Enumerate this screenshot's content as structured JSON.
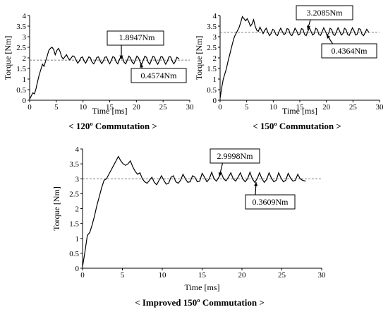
{
  "chart_data": [
    {
      "type": "line",
      "title": "< 120º Commutation >",
      "xlabel": "Time [ms]",
      "ylabel": "Torque  [Nm]",
      "xlim": [
        0,
        30
      ],
      "ylim": [
        0,
        4
      ],
      "xticks": [
        "0",
        "5",
        "10",
        "15",
        "20",
        "25",
        "30"
      ],
      "yticks": [
        "0",
        "0.5",
        "1",
        "1.5",
        "2",
        "2.5",
        "3",
        "3.5",
        "4"
      ],
      "grid": false,
      "series": [
        {
          "x": [
            0,
            0.3,
            0.6,
            0.9,
            1.2,
            1.5,
            1.8,
            2.1,
            2.4,
            2.7,
            3.0,
            3.3,
            3.6,
            3.9,
            4.2,
            4.5,
            4.8,
            5.1,
            5.4,
            5.7,
            6.0,
            6.3,
            6.6,
            6.9,
            7.2,
            7.5,
            7.8,
            8.1,
            8.4,
            8.7,
            9.0,
            9.3,
            9.6,
            9.9,
            10.2,
            10.5,
            10.8,
            11.1,
            11.4,
            11.7,
            12.0,
            12.3,
            12.6,
            12.9,
            13.2,
            13.5,
            13.8,
            14.1,
            14.4,
            14.7,
            15.0,
            15.3,
            15.6,
            15.9,
            16.2,
            16.5,
            16.8,
            17.1,
            17.4,
            17.7,
            18.0,
            18.3,
            18.6,
            18.9,
            19.2,
            19.5,
            19.8,
            20.1,
            20.4,
            20.7,
            21.0,
            21.3,
            21.6,
            21.9,
            22.2,
            22.5,
            22.8,
            23.1,
            23.4,
            23.7,
            24.0,
            24.3,
            24.6,
            24.9,
            25.2,
            25.5,
            25.8,
            26.1,
            26.4,
            26.7,
            27.0,
            27.3,
            27.6,
            28.0
          ],
          "y": [
            0.05,
            0.2,
            0.35,
            0.3,
            0.55,
            0.9,
            1.2,
            1.45,
            1.7,
            1.6,
            1.85,
            2.1,
            2.35,
            2.45,
            2.5,
            2.4,
            2.15,
            2.35,
            2.45,
            2.3,
            2.05,
            1.95,
            2.05,
            2.15,
            2.0,
            1.9,
            2.0,
            2.1,
            2.05,
            1.9,
            1.75,
            1.85,
            2.0,
            2.05,
            1.85,
            1.75,
            1.9,
            2.05,
            2.0,
            1.8,
            1.72,
            1.85,
            2.02,
            2.05,
            1.85,
            1.73,
            1.85,
            2.03,
            2.05,
            1.85,
            1.72,
            1.88,
            2.06,
            2.02,
            1.82,
            1.72,
            1.9,
            2.07,
            2.0,
            1.8,
            1.72,
            1.9,
            2.08,
            2.0,
            1.8,
            1.72,
            1.9,
            2.08,
            2.0,
            1.8,
            1.7,
            1.9,
            2.08,
            2.02,
            1.8,
            1.7,
            1.88,
            2.07,
            2.03,
            1.82,
            1.7,
            1.86,
            2.06,
            2.04,
            1.84,
            1.7,
            1.84,
            2.05,
            2.05,
            1.86,
            1.72,
            1.83,
            2.03,
            1.95
          ]
        }
      ],
      "mean_line": 1.8947,
      "annotations": [
        {
          "text": "1.8947Nm",
          "x": 20.5,
          "y": 1.92
        },
        {
          "text": "0.4574Nm",
          "x": 21.0,
          "y": 1.7
        }
      ]
    },
    {
      "type": "line",
      "title": "< 150º Commutation >",
      "xlabel": "Time [ms]",
      "ylabel": "Torque  [Nm]",
      "xlim": [
        0,
        30
      ],
      "ylim": [
        0,
        4
      ],
      "xticks": [
        "0",
        "5",
        "10",
        "15",
        "20",
        "25",
        "30"
      ],
      "yticks": [
        "0",
        "0.5",
        "1",
        "1.5",
        "2",
        "2.5",
        "3",
        "3.5",
        "4"
      ],
      "grid": false,
      "series": [
        {
          "x": [
            0,
            0.3,
            0.6,
            0.9,
            1.2,
            1.5,
            1.8,
            2.1,
            2.4,
            2.7,
            3.0,
            3.3,
            3.6,
            3.9,
            4.2,
            4.5,
            4.8,
            5.1,
            5.4,
            5.7,
            6.0,
            6.3,
            6.6,
            6.9,
            7.2,
            7.5,
            7.8,
            8.1,
            8.4,
            8.7,
            9.0,
            9.3,
            9.6,
            9.9,
            10.2,
            10.5,
            10.8,
            11.1,
            11.4,
            11.7,
            12.0,
            12.3,
            12.6,
            12.9,
            13.2,
            13.5,
            13.8,
            14.1,
            14.4,
            14.7,
            15.0,
            15.3,
            15.6,
            15.9,
            16.2,
            16.5,
            16.8,
            17.1,
            17.4,
            17.7,
            18.0,
            18.3,
            18.6,
            18.9,
            19.2,
            19.5,
            19.8,
            20.1,
            20.4,
            20.7,
            21.0,
            21.3,
            21.6,
            21.9,
            22.2,
            22.5,
            22.8,
            23.1,
            23.4,
            23.7,
            24.0,
            24.3,
            24.6,
            24.9,
            25.2,
            25.5,
            25.8,
            26.1,
            26.4,
            26.7,
            27.0,
            27.3,
            27.6,
            28.0
          ],
          "y": [
            0.1,
            0.6,
            1.0,
            1.25,
            1.5,
            1.85,
            2.15,
            2.45,
            2.75,
            3.0,
            3.15,
            3.3,
            3.45,
            3.7,
            3.95,
            3.85,
            3.75,
            3.85,
            3.7,
            3.5,
            3.6,
            3.8,
            3.5,
            3.3,
            3.25,
            3.45,
            3.3,
            3.15,
            3.3,
            3.4,
            3.2,
            3.05,
            3.15,
            3.35,
            3.3,
            3.1,
            3.05,
            3.25,
            3.4,
            3.25,
            3.1,
            3.15,
            3.38,
            3.35,
            3.12,
            3.05,
            3.2,
            3.4,
            3.28,
            3.08,
            3.12,
            3.38,
            3.35,
            3.1,
            3.05,
            3.25,
            3.42,
            3.26,
            3.08,
            3.14,
            3.4,
            3.34,
            3.1,
            3.06,
            3.24,
            3.42,
            3.26,
            3.08,
            3.14,
            3.4,
            3.34,
            3.1,
            3.06,
            3.24,
            3.42,
            3.26,
            3.08,
            3.14,
            3.4,
            3.34,
            3.1,
            3.06,
            3.24,
            3.42,
            3.28,
            3.08,
            3.12,
            3.38,
            3.35,
            3.12,
            3.05,
            3.2,
            3.35,
            3.2
          ]
        }
      ],
      "mean_line": 3.2085,
      "annotations": [
        {
          "text": "3.2085Nm",
          "x": 16.0,
          "y": 3.21
        },
        {
          "text": "0.4364Nm",
          "x": 21.5,
          "y": 3.1
        }
      ]
    },
    {
      "type": "line",
      "title": "< Improved 150º Commutation >",
      "xlabel": "Time [ms]",
      "ylabel": "Torque  [Nm]",
      "xlim": [
        0,
        30
      ],
      "ylim": [
        0,
        4
      ],
      "xticks": [
        "0",
        "5",
        "10",
        "15",
        "20",
        "25",
        "30"
      ],
      "yticks": [
        "0",
        "0.5",
        "1",
        "1.5",
        "2",
        "2.5",
        "3",
        "3.5",
        "4"
      ],
      "grid": false,
      "series": [
        {
          "x": [
            0,
            0.3,
            0.6,
            0.9,
            1.2,
            1.5,
            1.8,
            2.1,
            2.4,
            2.7,
            3.0,
            3.3,
            3.6,
            3.9,
            4.2,
            4.5,
            4.8,
            5.1,
            5.4,
            5.7,
            6.0,
            6.3,
            6.6,
            6.9,
            7.2,
            7.5,
            7.8,
            8.1,
            8.4,
            8.7,
            9.0,
            9.3,
            9.6,
            9.9,
            10.2,
            10.5,
            10.8,
            11.1,
            11.4,
            11.7,
            12.0,
            12.3,
            12.6,
            12.9,
            13.2,
            13.5,
            13.8,
            14.1,
            14.4,
            14.7,
            15.0,
            15.3,
            15.6,
            15.9,
            16.2,
            16.5,
            16.8,
            17.1,
            17.4,
            17.7,
            18.0,
            18.3,
            18.6,
            18.9,
            19.2,
            19.5,
            19.8,
            20.1,
            20.4,
            20.7,
            21.0,
            21.3,
            21.6,
            21.9,
            22.2,
            22.5,
            22.8,
            23.1,
            23.4,
            23.7,
            24.0,
            24.3,
            24.6,
            24.9,
            25.2,
            25.5,
            25.8,
            26.1,
            26.4,
            26.7,
            27.0,
            27.3,
            27.6,
            28.0
          ],
          "y": [
            0.05,
            0.55,
            1.1,
            1.2,
            1.45,
            1.75,
            2.1,
            2.4,
            2.7,
            2.95,
            3.0,
            3.15,
            3.3,
            3.45,
            3.6,
            3.75,
            3.6,
            3.5,
            3.45,
            3.5,
            3.6,
            3.4,
            3.25,
            3.15,
            3.2,
            3.0,
            2.9,
            2.85,
            2.95,
            3.05,
            2.88,
            2.8,
            2.95,
            3.1,
            2.95,
            2.82,
            2.85,
            3.05,
            3.1,
            2.9,
            2.85,
            2.95,
            3.15,
            3.0,
            2.88,
            2.9,
            3.1,
            3.05,
            2.9,
            2.92,
            3.18,
            3.05,
            2.9,
            3.0,
            3.22,
            3.0,
            2.92,
            3.05,
            3.2,
            3.0,
            2.93,
            3.05,
            3.2,
            3.0,
            2.92,
            3.05,
            3.2,
            3.0,
            2.9,
            3.0,
            3.22,
            3.0,
            2.88,
            3.0,
            3.2,
            3.0,
            2.88,
            2.98,
            3.2,
            3.02,
            2.9,
            2.95,
            3.2,
            3.02,
            2.9,
            2.95,
            3.18,
            3.02,
            2.92,
            2.95,
            3.15,
            3.0,
            2.95,
            2.92
          ]
        }
      ],
      "mean_line": 2.9998,
      "annotations": [
        {
          "text": "2.9998Nm",
          "x": 16.0,
          "y": 3.0
        },
        {
          "text": "0.3609Nm",
          "x": 21.0,
          "y": 2.85
        }
      ]
    }
  ]
}
